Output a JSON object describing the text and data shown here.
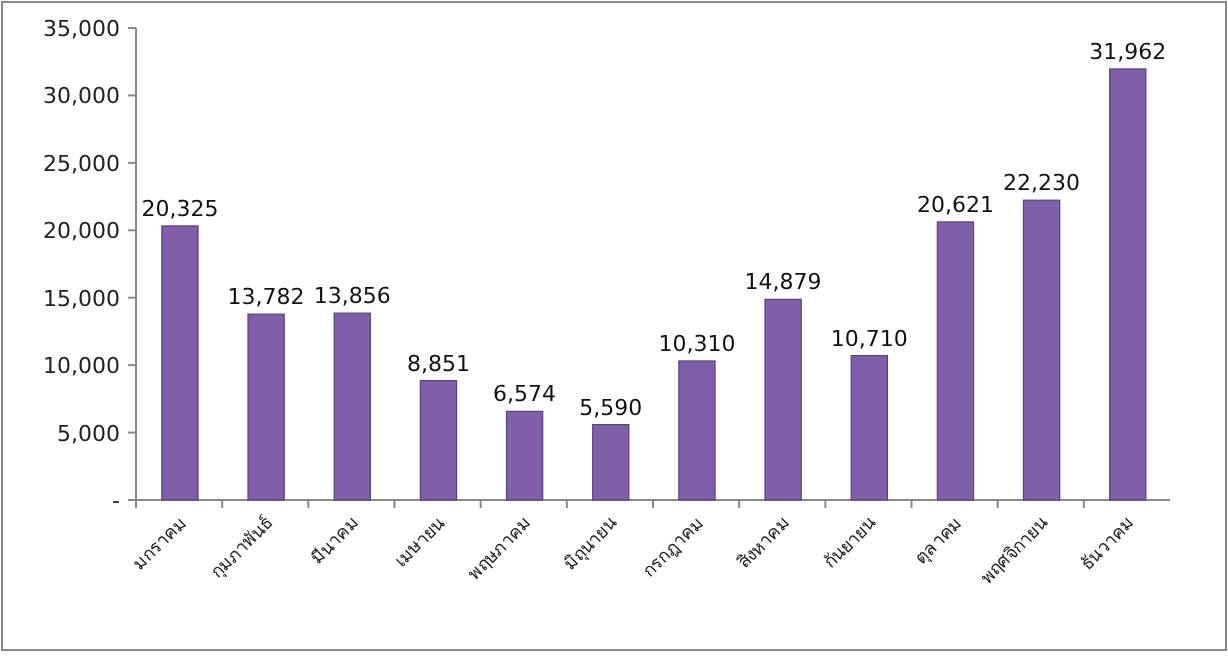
{
  "chart_data": {
    "type": "bar",
    "categories": [
      "มกราคม",
      "กุมภาพันธ์",
      "มีนาคม",
      "เมษายน",
      "พฤษภาคม",
      "มิถุนายน",
      "กรกฎาคม",
      "สิงหาคม",
      "กันยายน",
      "ตุลาคม",
      "พฤศจิกายน",
      "ธันวาคม"
    ],
    "values": [
      20325,
      13782,
      13856,
      8851,
      6574,
      5590,
      10310,
      14879,
      10710,
      20621,
      22230,
      31962
    ],
    "color": "#7f60a8",
    "ylim": [
      0,
      35000
    ],
    "yticks": [
      {
        "value": 0,
        "label": "-"
      },
      {
        "value": 5000,
        "label": "5,000"
      },
      {
        "value": 10000,
        "label": "10,000"
      },
      {
        "value": 15000,
        "label": "15,000"
      },
      {
        "value": 20000,
        "label": "20,000"
      },
      {
        "value": 25000,
        "label": "25,000"
      },
      {
        "value": 30000,
        "label": "30,000"
      },
      {
        "value": 35000,
        "label": "35,000"
      }
    ],
    "value_labels": [
      "20,325",
      "13,782",
      "13,856",
      "8,851",
      "6,574",
      "5,590",
      "10,310",
      "14,879",
      "10,710",
      "20,621",
      "22,230",
      "31,962"
    ]
  }
}
